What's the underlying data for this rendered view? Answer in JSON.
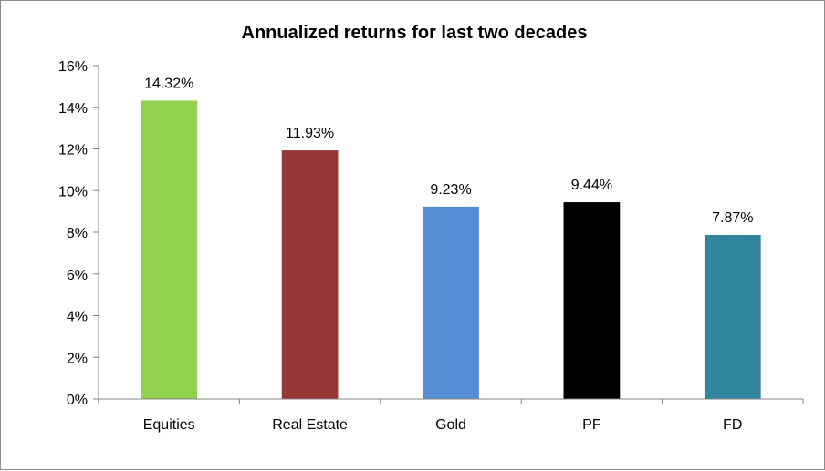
{
  "chart_data": {
    "type": "bar",
    "title": "Annualized returns for last two decades",
    "categories": [
      "Equities",
      "Real Estate",
      "Gold",
      "PF",
      "FD"
    ],
    "values": [
      14.32,
      11.93,
      9.23,
      9.44,
      7.87
    ],
    "data_labels": [
      "14.32%",
      "11.93%",
      "9.23%",
      "9.44%",
      "7.87%"
    ],
    "colors": [
      "#92d050",
      "#953735",
      "#558ed5",
      "#000000",
      "#31859c"
    ],
    "ylim": [
      0,
      16
    ],
    "yticks": [
      0,
      2,
      4,
      6,
      8,
      10,
      12,
      14,
      16
    ],
    "ytick_labels": [
      "0%",
      "2%",
      "4%",
      "6%",
      "8%",
      "10%",
      "12%",
      "14%",
      "16%"
    ],
    "grid": false,
    "legend": "none",
    "xlabel": "",
    "ylabel": ""
  }
}
